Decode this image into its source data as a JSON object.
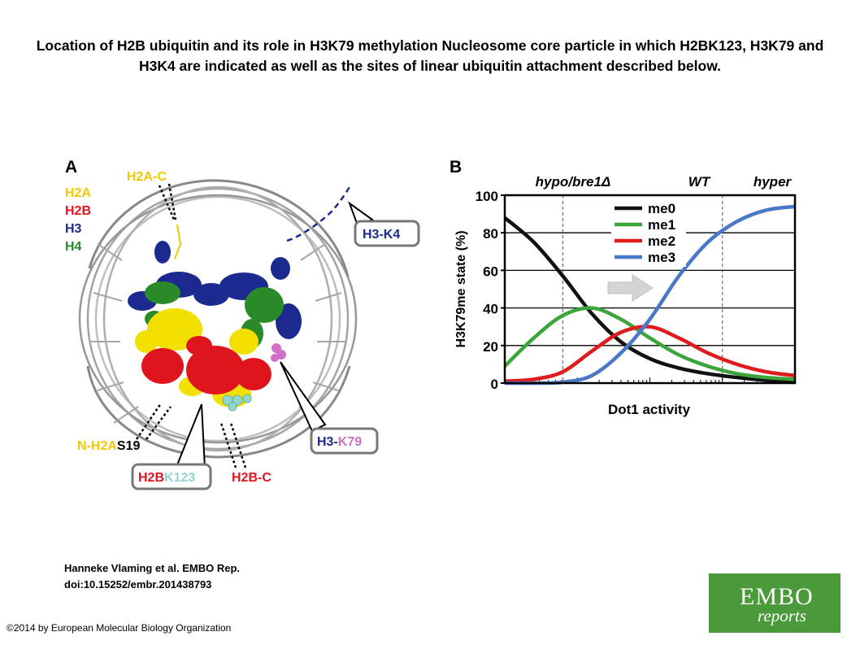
{
  "title": "Location of H2B ubiquitin and its role in H3K79 methylation Nucleosome core particle in which H2BK123, H3K79 and H3K4 are indicated as well as the sites of linear ubiquitin attachment described below.",
  "panel_a": {
    "letter": "A",
    "legend": [
      {
        "label": "H2A",
        "color": "#f2d600"
      },
      {
        "label": "H2B",
        "color": "#e0141c"
      },
      {
        "label": "H3",
        "color": "#1c2a8f"
      },
      {
        "label": "H4",
        "color": "#2a8a2a"
      }
    ],
    "labels": {
      "h2a_c": "H2A-C",
      "h3_k4": "H3-K4",
      "n_h2a_prefix": "N-H2A",
      "n_h2a_suffix": "S19",
      "h2b_prefix": "H2B",
      "h2b_suffix": "K123",
      "h2b_c": "H2B-C",
      "h3k79_prefix": "H3-",
      "h3k79_suffix": "K79"
    }
  },
  "panel_b": {
    "letter": "B",
    "top_labels": [
      "hypo/bre1Δ",
      "WT",
      "hyper"
    ]
  },
  "chart_data": {
    "type": "line",
    "xlabel": "Dot1 activity",
    "ylabel": "H3K79me state (%)",
    "ylim": [
      0,
      100
    ],
    "yticks": [
      0,
      20,
      40,
      60,
      80,
      100
    ],
    "grid": true,
    "legend_position": "top-right",
    "x": [
      0,
      0.1,
      0.2,
      0.3,
      0.4,
      0.5,
      0.6,
      0.7,
      0.8,
      0.9,
      1.0
    ],
    "series": [
      {
        "name": "me0",
        "color": "#111111",
        "values": [
          88,
          75,
          57,
          37,
          22,
          13,
          8,
          5,
          3,
          1.5,
          0.5
        ]
      },
      {
        "name": "me1",
        "color": "#3aa53a",
        "values": [
          9,
          24,
          36,
          40,
          34,
          24,
          15,
          9,
          5,
          3,
          2
        ]
      },
      {
        "name": "me2",
        "color": "#e01b1b",
        "values": [
          1,
          2,
          6,
          17,
          27,
          30,
          24,
          16,
          10,
          6,
          4
        ]
      },
      {
        "name": "me3",
        "color": "#4a78c8",
        "values": [
          0,
          0,
          0.5,
          4,
          16,
          34,
          57,
          75,
          86,
          92,
          94
        ]
      }
    ],
    "dashed_markers_x": [
      0.2,
      0.75
    ]
  },
  "citation": {
    "line1": "Hanneke Vlaming et al. EMBO Rep.",
    "line2": "doi:10.15252/embr.201438793"
  },
  "copyright": "©2014 by European Molecular Biology Organization",
  "logo": {
    "line1": "EMBO",
    "line2": "reports"
  }
}
